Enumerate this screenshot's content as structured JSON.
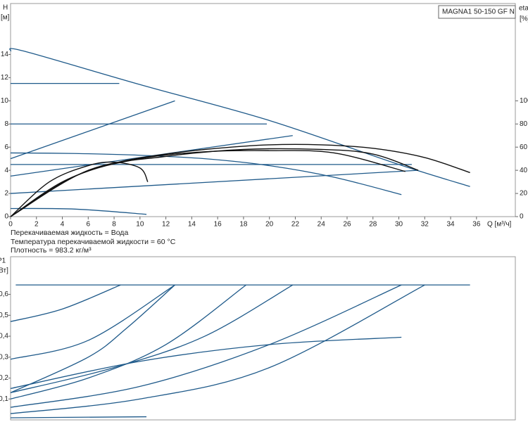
{
  "chart_data": [
    {
      "type": "line",
      "title": "MAGNA1 50-150 GF N",
      "x_label": "Q [м³/ч]",
      "y_label": "H",
      "y_unit": "[м]",
      "y2_label": "eta",
      "y2_unit": "[%]",
      "notes": [
        "Перекачиваемая жидкость = Вода",
        "Температура перекачиваемой жидкости = 60 °C",
        "Плотность = 983.2 кг/м³"
      ],
      "xlim": [
        0,
        39
      ],
      "xticks": [
        0,
        2,
        4,
        6,
        8,
        10,
        12,
        14,
        16,
        18,
        20,
        22,
        24,
        26,
        28,
        30,
        32,
        34,
        36
      ],
      "ylim": [
        0,
        18.4
      ],
      "yticks": [
        0,
        2,
        4,
        6,
        8,
        10,
        12,
        14
      ],
      "y2lim": [
        0,
        184
      ],
      "y2ticks": [
        0,
        20,
        40,
        60,
        80,
        100
      ],
      "series": [
        {
          "color": "#1f5a8a",
          "x": [
            0,
            1,
            10,
            20,
            30,
            35.5
          ],
          "values": [
            14.3,
            14.3,
            11.4,
            8.3,
            4.5,
            2.6
          ]
        },
        {
          "color": "#1f5a8a",
          "x": [
            0,
            8.4
          ],
          "values": [
            11.5,
            11.5
          ]
        },
        {
          "color": "#1f5a8a",
          "x": [
            0,
            19.8
          ],
          "values": [
            8,
            8
          ]
        },
        {
          "color": "#1f5a8a",
          "x": [
            0,
            31
          ],
          "values": [
            4.5,
            4.5
          ]
        },
        {
          "color": "#1f5a8a",
          "x": [
            0,
            12.7
          ],
          "values": [
            5,
            10
          ]
        },
        {
          "color": "#1f5a8a",
          "x": [
            0,
            21.8
          ],
          "values": [
            3.5,
            7
          ]
        },
        {
          "color": "#1f5a8a",
          "x": [
            0,
            31.5
          ],
          "values": [
            2,
            4
          ]
        },
        {
          "color": "#1f5a8a",
          "x": [
            0,
            5,
            10,
            15,
            20,
            25,
            30.2
          ],
          "values": [
            5.5,
            5.45,
            5.3,
            5,
            4.4,
            3.4,
            1.9
          ]
        },
        {
          "color": "#1f5a8a",
          "x": [
            0,
            5,
            10.5
          ],
          "values": [
            0.7,
            0.65,
            0.2
          ]
        },
        {
          "color": "#111111",
          "axis": "y2",
          "x": [
            0,
            4,
            8,
            12,
            16,
            20,
            24,
            28,
            32,
            35.5
          ],
          "values": [
            0,
            30,
            46,
            54,
            59,
            62,
            62,
            59,
            51,
            38
          ]
        },
        {
          "color": "#111111",
          "axis": "y2",
          "x": [
            0,
            3,
            6,
            8,
            10,
            10.6
          ],
          "values": [
            0,
            30,
            44,
            47,
            42,
            30
          ]
        },
        {
          "color": "#111111",
          "axis": "y2",
          "x": [
            0,
            5,
            10,
            15,
            20,
            25,
            30.5
          ],
          "values": [
            0,
            35,
            50,
            56,
            57,
            55,
            39
          ]
        },
        {
          "color": "#111111",
          "axis": "y2",
          "x": [
            0,
            6,
            12,
            18,
            24,
            28,
            31.5
          ],
          "values": [
            0,
            40,
            52,
            58,
            58,
            54,
            40
          ]
        }
      ]
    },
    {
      "type": "line",
      "y_label": "P1",
      "y_unit": "[кВт]",
      "xlim": [
        0,
        39
      ],
      "ylim": [
        0,
        0.78
      ],
      "yticks": [
        {
          "value": 0.1,
          "label": "0,1"
        },
        {
          "value": 0.2,
          "label": "0,2"
        },
        {
          "value": 0.3,
          "label": "0,3"
        },
        {
          "value": 0.4,
          "label": "0,4"
        },
        {
          "value": 0.5,
          "label": "0,5"
        },
        {
          "value": 0.6,
          "label": "0,6"
        }
      ],
      "series": [
        {
          "color": "#1f5a8a",
          "x": [
            0.4,
            35.5
          ],
          "values": [
            0.645,
            0.645
          ]
        },
        {
          "color": "#1f5a8a",
          "x": [
            0,
            4,
            8.5
          ],
          "values": [
            0.47,
            0.53,
            0.645
          ]
        },
        {
          "color": "#1f5a8a",
          "x": [
            0,
            6,
            12.7
          ],
          "values": [
            0.29,
            0.38,
            0.645
          ]
        },
        {
          "color": "#1f5a8a",
          "x": [
            0,
            6,
            9,
            12.7
          ],
          "values": [
            0.13,
            0.3,
            0.44,
            0.645
          ]
        },
        {
          "color": "#1f5a8a",
          "x": [
            0,
            6,
            12,
            18.2
          ],
          "values": [
            0.1,
            0.2,
            0.36,
            0.645
          ]
        },
        {
          "color": "#1f5a8a",
          "x": [
            0,
            8,
            15,
            21.8
          ],
          "values": [
            0.13,
            0.25,
            0.4,
            0.645
          ]
        },
        {
          "color": "#1f5a8a",
          "x": [
            0,
            10,
            20,
            30.2
          ],
          "values": [
            0.06,
            0.16,
            0.36,
            0.645
          ]
        },
        {
          "color": "#1f5a8a",
          "x": [
            0,
            10,
            20,
            32
          ],
          "values": [
            0.03,
            0.1,
            0.25,
            0.645
          ]
        },
        {
          "color": "#1f5a8a",
          "x": [
            0,
            10,
            20,
            30.2
          ],
          "values": [
            0.15,
            0.28,
            0.36,
            0.395
          ]
        },
        {
          "color": "#1f5a8a",
          "x": [
            0,
            10.5
          ],
          "values": [
            0.01,
            0.015
          ]
        }
      ]
    }
  ]
}
